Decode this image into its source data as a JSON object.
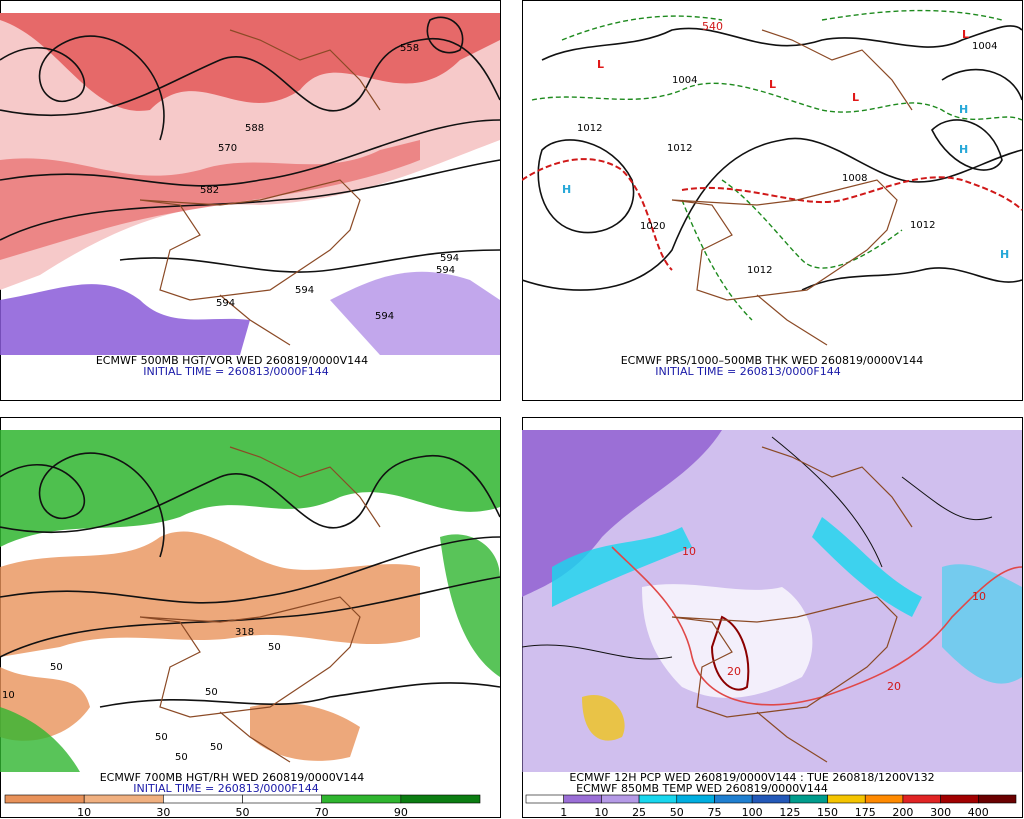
{
  "panels": [
    {
      "caption": "ECMWF 500MB HGT/VOR WED 260819/0000V144",
      "initial_time": "INITIAL TIME = 260813/0000F144",
      "contour_labels": [
        "558",
        "570",
        "582",
        "594",
        "594",
        "594",
        "594",
        "594",
        "588"
      ]
    },
    {
      "caption": "ECMWF PRS/1000–500MB THK WED 260819/0000V144",
      "initial_time": "INITIAL TIME = 260813/0000F144",
      "contour_labels": [
        "1004",
        "1012",
        "1012",
        "1012",
        "1020",
        "1012",
        "1004",
        "1008",
        "540"
      ],
      "pressure_centers": [
        "L",
        "L",
        "L",
        "L",
        "H",
        "H",
        "H",
        "H"
      ]
    },
    {
      "caption": "ECMWF 700MB HGT/RH WED 260819/0000V144",
      "initial_time": "INITIAL TIME = 260813/0000F144",
      "contour_labels": [
        "50",
        "50",
        "50",
        "10",
        "50",
        "318",
        "50",
        "50"
      ],
      "colorbar": {
        "labels": [
          10,
          30,
          50,
          70,
          90
        ],
        "colors": [
          "#e8925a",
          "#f0b080",
          "#ffffff",
          "#ffffff",
          "#2fb52f",
          "#0b7d12"
        ]
      }
    },
    {
      "caption": "ECMWF 12H PCP WED 260819/0000V144 : TUE 260818/1200V132",
      "initial_time": "ECMWF 850MB TEMP WED 260819/0000V144",
      "contour_labels": [
        "10",
        "20",
        "20",
        "10"
      ],
      "colorbar": {
        "labels": [
          1,
          10,
          25,
          50,
          75,
          100,
          125,
          150,
          175,
          200,
          300,
          400
        ],
        "colors": [
          "#ffffff",
          "#9b6fd6",
          "#b59ae6",
          "#18d7ee",
          "#00aee0",
          "#1f7fd0",
          "#2358b8",
          "#009c8c",
          "#f4c400",
          "#ff8a00",
          "#e02424",
          "#a10000",
          "#6a0000"
        ]
      }
    }
  ]
}
